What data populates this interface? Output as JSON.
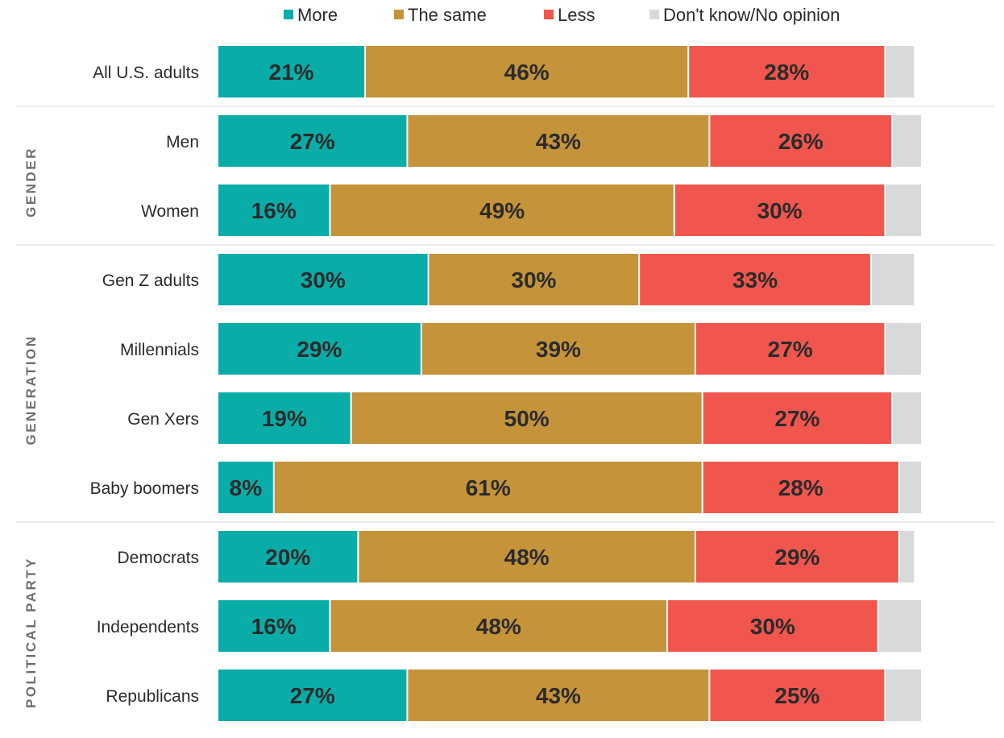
{
  "chart_data": {
    "type": "bar",
    "orientation": "horizontal",
    "stacked": true,
    "legend_position": "top",
    "grid": false,
    "xlim": [
      0,
      100
    ],
    "series": [
      {
        "name": "More",
        "color": "#0aaca8"
      },
      {
        "name": "The same",
        "color": "#c4933a"
      },
      {
        "name": "Less",
        "color": "#f0564e"
      },
      {
        "name": "Don't know/No opinion",
        "color": "#d7d9da"
      }
    ],
    "groups": [
      {
        "name": "",
        "rows": [
          {
            "label": "All U.S. adults",
            "values": [
              21,
              46,
              28,
              4
            ]
          }
        ]
      },
      {
        "name": "GENDER",
        "rows": [
          {
            "label": "Men",
            "values": [
              27,
              43,
              26,
              4
            ]
          },
          {
            "label": "Women",
            "values": [
              16,
              49,
              30,
              5
            ]
          }
        ]
      },
      {
        "name": "GENERATION",
        "rows": [
          {
            "label": "Gen Z adults",
            "values": [
              30,
              30,
              33,
              6
            ]
          },
          {
            "label": "Millennials",
            "values": [
              29,
              39,
              27,
              5
            ]
          },
          {
            "label": "Gen Xers",
            "values": [
              19,
              50,
              27,
              4
            ]
          },
          {
            "label": "Baby boomers",
            "values": [
              8,
              61,
              28,
              3
            ]
          }
        ]
      },
      {
        "name": "POLITICAL PARTY",
        "rows": [
          {
            "label": "Democrats",
            "values": [
              20,
              48,
              29,
              2
            ]
          },
          {
            "label": "Independents",
            "values": [
              16,
              48,
              30,
              6
            ]
          },
          {
            "label": "Republicans",
            "values": [
              27,
              43,
              25,
              5
            ]
          }
        ]
      }
    ]
  }
}
